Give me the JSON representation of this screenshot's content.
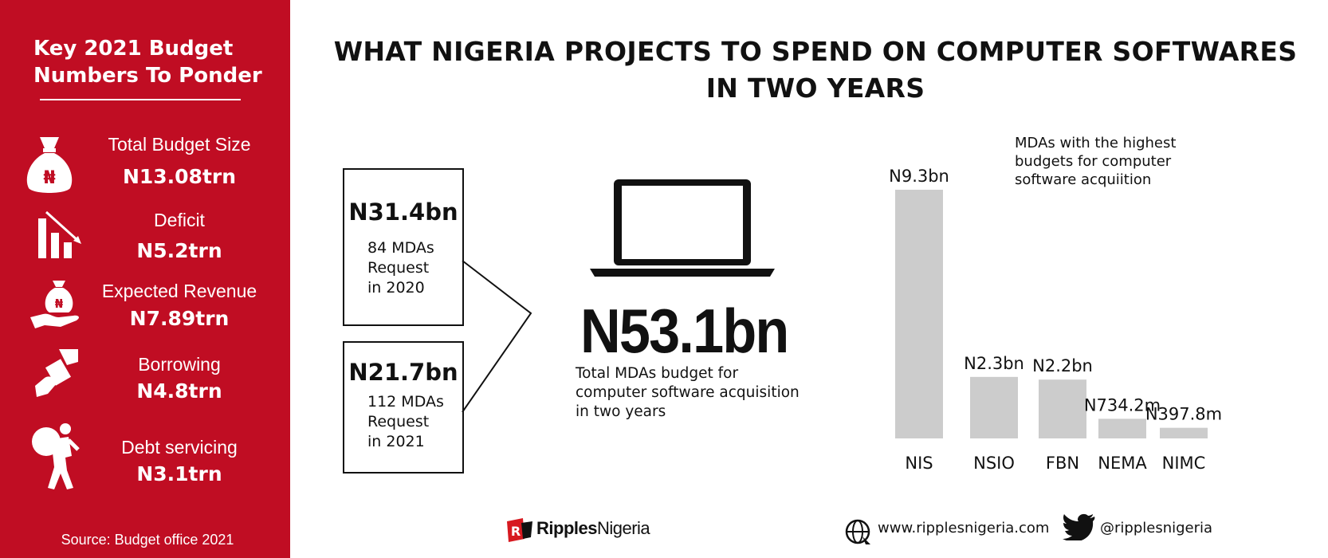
{
  "sidebar": {
    "title": "Key 2021 Budget\nNumbers To Ponder",
    "items": [
      {
        "label": "Total Budget Size",
        "value": "N13.08trn",
        "icon": "money-bag-icon"
      },
      {
        "label": "Deficit",
        "value": "N5.2trn",
        "icon": "declining-bars-icon"
      },
      {
        "label": "Expected Revenue",
        "value": "N7.89trn",
        "icon": "hand-money-bag-icon"
      },
      {
        "label": "Borrowing",
        "value": "N4.8trn",
        "icon": "hand-exchange-icon"
      },
      {
        "label": "Debt servicing",
        "value": "N3.1trn",
        "icon": "person-carrying-sack-icon"
      }
    ],
    "icon_symbol": "₦",
    "source": "Source: Budget office 2021"
  },
  "main": {
    "title": "WHAT NIGERIA PROJECTS TO SPEND ON COMPUTER SOFTWARES\nIN TWO YEARS",
    "requests": [
      {
        "amount": "N31.4bn",
        "desc": "84 MDAs\nRequest\nin 2020"
      },
      {
        "amount": "N21.7bn",
        "desc": "112 MDAs\nRequest\nin 2021"
      }
    ],
    "total": {
      "amount": "N53.1bn",
      "desc": "Total MDAs budget for\ncomputer software acquisition\nin two years"
    }
  },
  "chart_data": {
    "type": "bar",
    "title": "MDAs with the highest\nbudgets for computer\nsoftware acquiition",
    "categories": [
      "NIS",
      "NSIO",
      "FBN",
      "NEMA",
      "NIMC"
    ],
    "values": [
      9.3,
      2.3,
      2.2,
      0.7342,
      0.3978
    ],
    "unit": "N billion",
    "data_labels": [
      "N9.3bn",
      "N2.3bn",
      "N2.2bn",
      "N734.2m",
      "N397.8m"
    ],
    "bar_color": "#cccccc",
    "grid": false,
    "legend": "none"
  },
  "footer": {
    "brand": {
      "bold": "Ripples",
      "normal": "Nigeria"
    },
    "website": "www.ripplesnigeria.com",
    "twitter": "@ripplesnigeria"
  },
  "colors": {
    "sidebar_bg": "#c00d23",
    "text": "#111111",
    "brand_red": "#d71920"
  }
}
